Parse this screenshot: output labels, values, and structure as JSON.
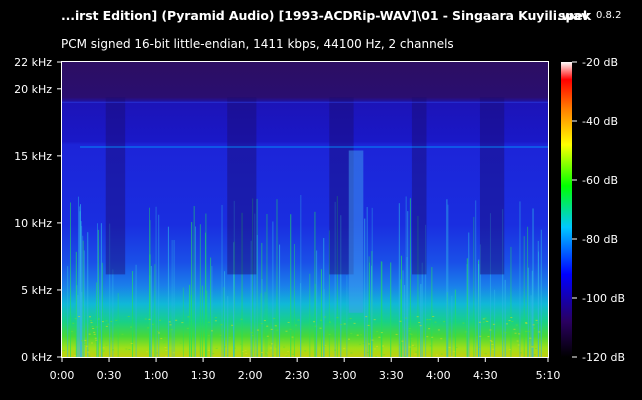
{
  "header": {
    "title": "...irst Edition] (Pyramid Audio) [1993-ACDRip-WAV]\\01 - Singaara Kuyili.wav",
    "app_name": "spek",
    "app_version": "0.8.2",
    "file_info": "PCM signed 16-bit little-endian, 1411 kbps, 44100 Hz, 2 channels"
  },
  "freq_axis": {
    "labels": [
      "22 kHz",
      "20 kHz",
      "15 kHz",
      "10 kHz",
      "5 kHz",
      "0 kHz"
    ],
    "values_khz": [
      22,
      20,
      15,
      10,
      5,
      0
    ],
    "max_khz": 22
  },
  "time_axis": {
    "labels": [
      "0:00",
      "0:30",
      "1:00",
      "1:30",
      "2:00",
      "2:30",
      "3:00",
      "3:30",
      "4:00",
      "4:30",
      "5:10"
    ],
    "values_sec": [
      0,
      30,
      60,
      90,
      120,
      150,
      180,
      210,
      240,
      270,
      310
    ],
    "duration_sec": 310
  },
  "db_scale": {
    "labels": [
      "-20 dB",
      "-40 dB",
      "-60 dB",
      "-80 dB",
      "-100 dB",
      "-120 dB"
    ],
    "values_db": [
      -20,
      -40,
      -60,
      -80,
      -100,
      -120
    ],
    "range_db": [
      -120,
      -20
    ],
    "colors": [
      "#ffffff",
      "#ff0000",
      "#ff8000",
      "#ffff00",
      "#00ff00",
      "#00c8ff",
      "#0000ff",
      "#2a0060",
      "#000000"
    ]
  },
  "colors": {
    "background": "#000000",
    "plot_base": "#2a0a6a",
    "mid_band": "#1a1ad0",
    "low_band": "#00c0e0",
    "energy_green": "#30d040",
    "energy_yellow": "#c0e000",
    "cutoff_line": "#00a0ff"
  }
}
